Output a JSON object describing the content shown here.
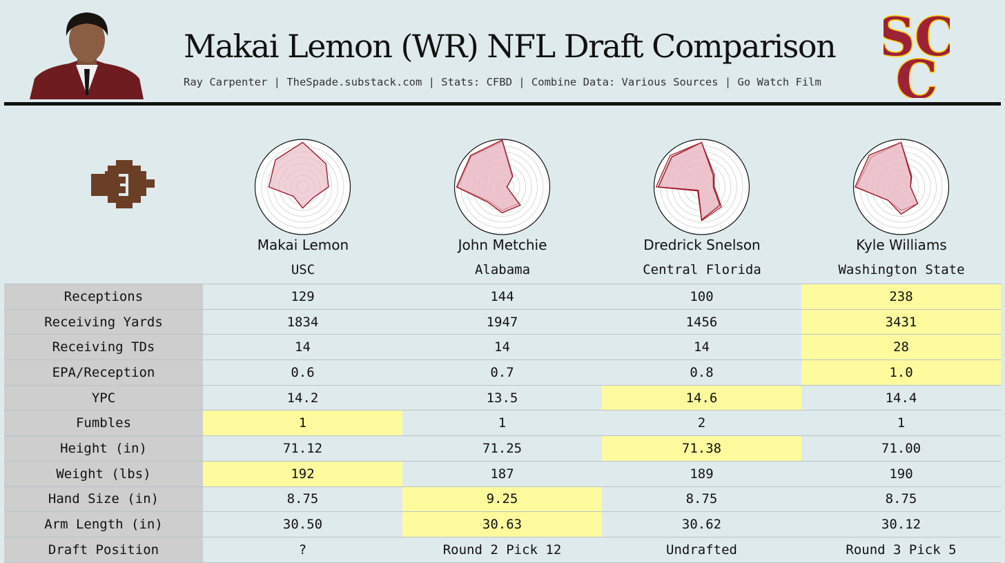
{
  "header": {
    "title": "Makai Lemon (WR) NFL Draft Comparison",
    "subtitle": "Ray Carpenter | TheSpade.substack.com | Stats: CFBD | Combine Data: Various Sources | Go Watch Film",
    "logo_text": "SC"
  },
  "colors": {
    "background": "#dfeaec",
    "label_bg": "#cecece",
    "highlight": "#fefb9e",
    "radar_fill": "#e9b9c3",
    "radar_stroke": "#a01c2c",
    "usc_cardinal": "#9d2235",
    "usc_gold": "#ffcc00",
    "brand_brown": "#6b3e26"
  },
  "players": [
    {
      "name": "Makai Lemon",
      "school": "USC"
    },
    {
      "name": "John Metchie",
      "school": "Alabama"
    },
    {
      "name": "Dredrick Snelson",
      "school": "Central Florida"
    },
    {
      "name": "Kyle Williams",
      "school": "Washington State"
    }
  ],
  "table": {
    "rows": [
      {
        "label": "Receptions",
        "values": [
          "129",
          "144",
          "100",
          "238"
        ],
        "best": 3
      },
      {
        "label": "Receiving Yards",
        "values": [
          "1834",
          "1947",
          "1456",
          "3431"
        ],
        "best": 3
      },
      {
        "label": "Receiving TDs",
        "values": [
          "14",
          "14",
          "14",
          "28"
        ],
        "best": 3
      },
      {
        "label": "EPA/Reception",
        "values": [
          "0.6",
          "0.7",
          "0.8",
          "1.0"
        ],
        "best": 3
      },
      {
        "label": "YPC",
        "values": [
          "14.2",
          "13.5",
          "14.6",
          "14.4"
        ],
        "best": 2
      },
      {
        "label": "Fumbles",
        "values": [
          "1",
          "1",
          "2",
          "1"
        ],
        "best": 0
      },
      {
        "label": "Height (in)",
        "values": [
          "71.12",
          "71.25",
          "71.38",
          "71.00"
        ],
        "best": 2
      },
      {
        "label": "Weight (lbs)",
        "values": [
          "192",
          "187",
          "189",
          "190"
        ],
        "best": 0
      },
      {
        "label": "Hand Size (in)",
        "values": [
          "8.75",
          "9.25",
          "8.75",
          "8.75"
        ],
        "best": 1
      },
      {
        "label": "Arm Length (in)",
        "values": [
          "30.50",
          "30.63",
          "30.62",
          "30.12"
        ],
        "best": 1
      },
      {
        "label": "Draft Position",
        "values": [
          "?",
          "Round 2 Pick 12",
          "Undrafted",
          "Round 3 Pick 5"
        ],
        "best": -1
      }
    ]
  },
  "chart_data": {
    "type": "radar",
    "axes": 8,
    "rmax": 1,
    "rings": 8,
    "players": [
      {
        "name": "Makai Lemon",
        "values": [
          0.55,
          0.7,
          0.95,
          0.82,
          0.72,
          0.28,
          0.45,
          0.32
        ],
        "compare": null
      },
      {
        "name": "John Metchie",
        "values": [
          0.1,
          0.32,
          1.0,
          0.95,
          0.97,
          0.45,
          0.55,
          0.55
        ],
        "compare": [
          0.1,
          0.3,
          0.97,
          0.93,
          0.95,
          0.42,
          0.5,
          0.5
        ]
      },
      {
        "name": "Dredrick Snelson",
        "values": [
          0.25,
          0.35,
          0.95,
          0.9,
          0.92,
          0.1,
          0.7,
          0.55
        ],
        "compare": [
          0.27,
          0.38,
          0.95,
          0.95,
          0.97,
          0.12,
          0.72,
          0.6
        ]
      },
      {
        "name": "Kyle Williams",
        "values": [
          0.2,
          0.3,
          0.95,
          0.96,
          0.98,
          0.4,
          0.58,
          0.5
        ],
        "compare": [
          0.2,
          0.32,
          0.95,
          0.9,
          0.95,
          0.4,
          0.5,
          0.5
        ]
      }
    ]
  }
}
